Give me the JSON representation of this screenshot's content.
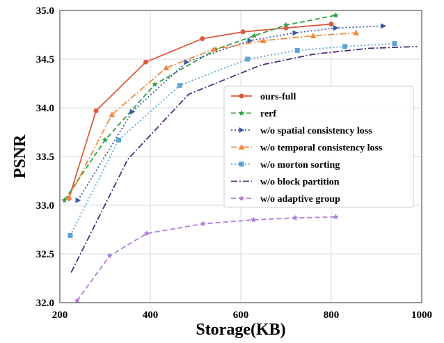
{
  "chart_data": {
    "type": "line",
    "title": "",
    "xlabel": "Storage(KB)",
    "ylabel": "PSNR",
    "xlim": [
      200,
      1000
    ],
    "ylim": [
      32.0,
      35.0
    ],
    "xticks": [
      200,
      400,
      600,
      800,
      1000
    ],
    "yticks": [
      32.0,
      32.5,
      33.0,
      33.5,
      34.0,
      34.5,
      35.0
    ],
    "xtick_labels": [
      "200",
      "400",
      "600",
      "800",
      "1000"
    ],
    "ytick_labels": [
      "32.0",
      "32.5",
      "33.0",
      "33.5",
      "34.0",
      "34.5",
      "35.0"
    ],
    "grid": true,
    "legend_position": "center-right",
    "series": [
      {
        "name": "ours-full",
        "color": "#dd5a3e",
        "dash": "solid",
        "marker": "circle",
        "x": [
          220,
          280,
          390,
          515,
          605,
          700,
          800
        ],
        "y": [
          33.07,
          33.97,
          34.47,
          34.71,
          34.78,
          34.82,
          34.86
        ]
      },
      {
        "name": "rerf",
        "color": "#2e9e3e",
        "dash": "dashed",
        "marker": "star",
        "x": [
          210,
          300,
          410,
          545,
          630,
          700,
          810
        ],
        "y": [
          33.05,
          33.67,
          34.24,
          34.6,
          34.74,
          34.85,
          34.95
        ]
      },
      {
        "name": "w/o spatial consistency loss",
        "color": "#3a5aa4",
        "dash": "dotted",
        "marker": "triangle-right",
        "x": [
          240,
          360,
          480,
          620,
          720,
          810,
          915
        ],
        "y": [
          33.05,
          33.96,
          34.47,
          34.69,
          34.77,
          34.82,
          34.84
        ]
      },
      {
        "name": "w/o temporal consistency loss",
        "color": "#f08a3e",
        "dash": "dashdot",
        "marker": "triangle-up",
        "x": [
          220,
          315,
          435,
          540,
          650,
          760,
          855
        ],
        "y": [
          33.08,
          33.93,
          34.41,
          34.6,
          34.69,
          34.74,
          34.77
        ]
      },
      {
        "name": "w/o morton sorting",
        "color": "#5ba4d4",
        "dash": "dotted",
        "marker": "square",
        "x": [
          223,
          330,
          465,
          615,
          725,
          830,
          940
        ],
        "y": [
          32.69,
          33.67,
          34.23,
          34.5,
          34.59,
          34.63,
          34.66
        ]
      },
      {
        "name": "w/o block partition",
        "color": "#4a2c7a",
        "dash": "dashdot",
        "marker": "none",
        "x": [
          225,
          350,
          485,
          645,
          760,
          880,
          990
        ],
        "y": [
          32.31,
          33.47,
          34.14,
          34.44,
          34.55,
          34.61,
          34.63
        ]
      },
      {
        "name": "w/o adaptive group",
        "color": "#b07ad8",
        "dash": "dashed",
        "marker": "star",
        "x": [
          238,
          310,
          392,
          517,
          628,
          720,
          810
        ],
        "y": [
          32.02,
          32.48,
          32.71,
          32.81,
          32.85,
          32.87,
          32.88
        ]
      }
    ]
  }
}
